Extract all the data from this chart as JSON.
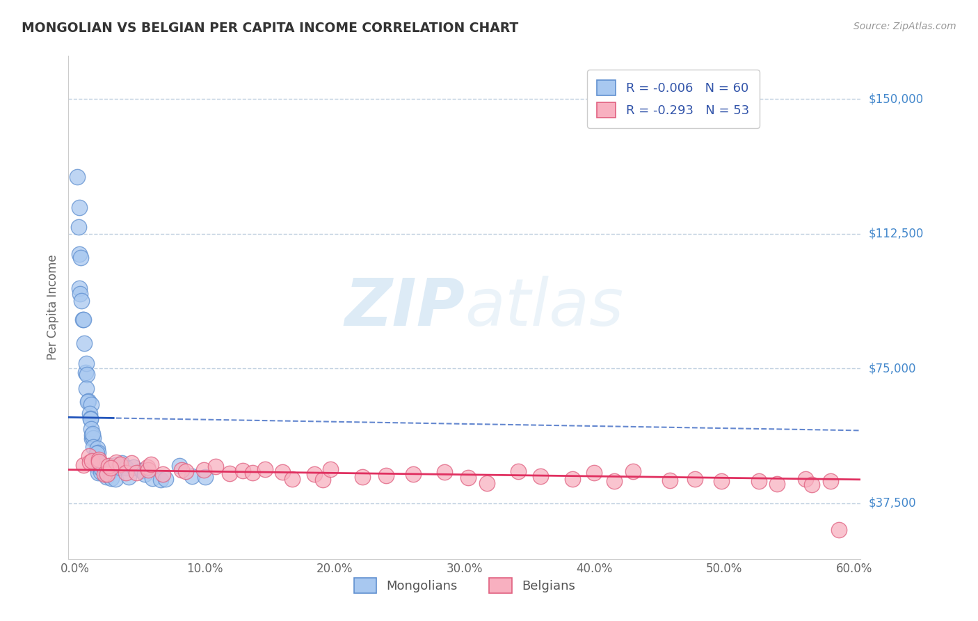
{
  "title": "MONGOLIAN VS BELGIAN PER CAPITA INCOME CORRELATION CHART",
  "source": "Source: ZipAtlas.com",
  "ylabel": "Per Capita Income",
  "xlim": [
    -0.005,
    0.605
  ],
  "ylim": [
    22000,
    162000
  ],
  "yticks": [
    37500,
    75000,
    112500,
    150000
  ],
  "ytick_labels": [
    "$37,500",
    "$75,000",
    "$112,500",
    "$150,000"
  ],
  "xticks": [
    0.0,
    0.1,
    0.2,
    0.3,
    0.4,
    0.5,
    0.6
  ],
  "xtick_labels": [
    "0.0%",
    "10.0%",
    "20.0%",
    "30.0%",
    "40.0%",
    "50.0%",
    "60.0%"
  ],
  "mongolian_fill_color": "#a8c8f0",
  "belgian_fill_color": "#f8b0c0",
  "mongolian_edge_color": "#6090d0",
  "belgian_edge_color": "#e06080",
  "mongolian_line_color": "#2255bb",
  "belgian_line_color": "#e03060",
  "mongolian_R": "-0.006",
  "mongolian_N": "60",
  "belgian_R": "-0.293",
  "belgian_N": "53",
  "legend_text_color": "#3355aa",
  "watermark_color": "#d0e8f8",
  "background_color": "#ffffff",
  "grid_color": "#c0d0e0",
  "ytick_color": "#4488cc",
  "mongolian_scatter_x": [
    0.002,
    0.003,
    0.003,
    0.004,
    0.004,
    0.005,
    0.005,
    0.006,
    0.006,
    0.007,
    0.007,
    0.008,
    0.008,
    0.009,
    0.009,
    0.01,
    0.01,
    0.011,
    0.011,
    0.012,
    0.012,
    0.013,
    0.013,
    0.014,
    0.014,
    0.015,
    0.015,
    0.016,
    0.016,
    0.017,
    0.017,
    0.018,
    0.018,
    0.019,
    0.019,
    0.02,
    0.02,
    0.021,
    0.022,
    0.023,
    0.024,
    0.025,
    0.026,
    0.027,
    0.028,
    0.03,
    0.032,
    0.034,
    0.036,
    0.038,
    0.04,
    0.045,
    0.05,
    0.055,
    0.06,
    0.065,
    0.07,
    0.08,
    0.09,
    0.1
  ],
  "mongolian_scatter_y": [
    128000,
    122000,
    115000,
    108000,
    105000,
    100000,
    97000,
    92000,
    88000,
    85000,
    82000,
    78000,
    75000,
    73000,
    70000,
    68000,
    66000,
    64000,
    62000,
    61000,
    60000,
    58000,
    57000,
    56000,
    55000,
    54000,
    53000,
    52000,
    51000,
    50500,
    50000,
    49500,
    49000,
    48500,
    48200,
    48000,
    47800,
    47500,
    47200,
    47000,
    46800,
    46600,
    46400,
    46200,
    46000,
    45800,
    45600,
    45500,
    45400,
    45300,
    45200,
    45000,
    44900,
    44800,
    44700,
    44600,
    44500,
    44400,
    44300,
    44200
  ],
  "belgian_scatter_x": [
    0.008,
    0.01,
    0.012,
    0.015,
    0.018,
    0.02,
    0.022,
    0.025,
    0.028,
    0.03,
    0.033,
    0.036,
    0.04,
    0.044,
    0.048,
    0.052,
    0.056,
    0.06,
    0.07,
    0.08,
    0.09,
    0.1,
    0.11,
    0.12,
    0.13,
    0.14,
    0.15,
    0.16,
    0.17,
    0.18,
    0.19,
    0.2,
    0.22,
    0.24,
    0.26,
    0.28,
    0.3,
    0.32,
    0.34,
    0.36,
    0.38,
    0.4,
    0.42,
    0.44,
    0.46,
    0.48,
    0.5,
    0.52,
    0.54,
    0.56,
    0.57,
    0.58,
    0.59
  ],
  "belgian_scatter_y": [
    50000,
    51000,
    49000,
    50500,
    48000,
    49000,
    47500,
    48500,
    47000,
    48000,
    47500,
    48500,
    47000,
    48000,
    46500,
    47500,
    46000,
    47000,
    46500,
    47000,
    46000,
    47500,
    46500,
    47000,
    46000,
    46500,
    45500,
    46000,
    45000,
    46000,
    45500,
    46000,
    45000,
    45500,
    45000,
    45500,
    45000,
    44500,
    45000,
    44500,
    44000,
    45000,
    44000,
    44500,
    44000,
    44500,
    43500,
    44000,
    43000,
    44000,
    43500,
    43000,
    30000
  ]
}
